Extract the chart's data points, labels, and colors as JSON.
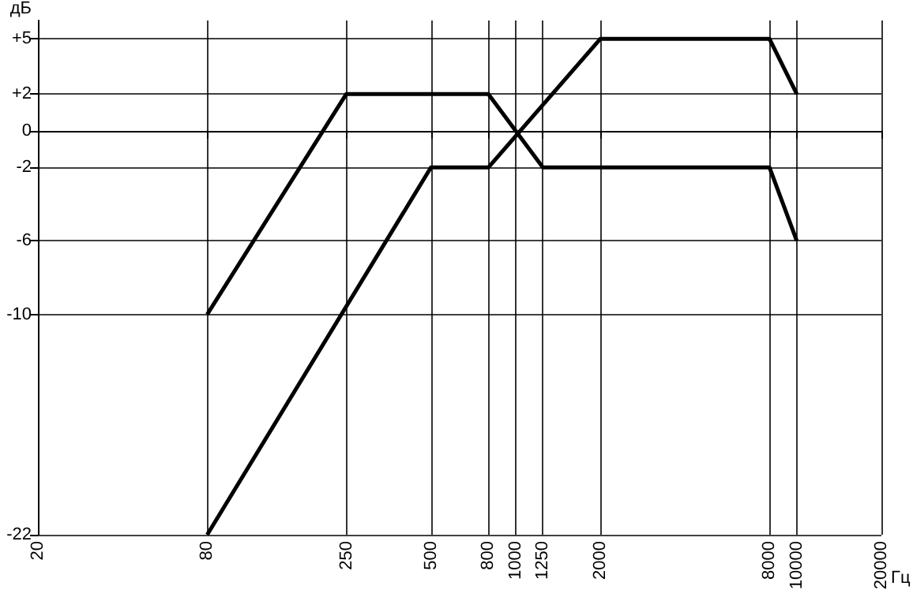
{
  "chart_data": {
    "type": "line",
    "xlabel": "Гц",
    "ylabel": "дБ",
    "log": "x",
    "xlim": [
      20,
      20000
    ],
    "xticks": [
      20,
      80,
      250,
      500,
      800,
      1000,
      1250,
      2000,
      8000,
      10000,
      20000
    ],
    "ylim": [
      -22,
      6
    ],
    "yticks": [
      {
        "value": 5,
        "label": "+5"
      },
      {
        "value": 2,
        "label": "+2"
      },
      0,
      -2,
      -6,
      -10,
      -22
    ],
    "grid": true,
    "marker": "none",
    "line_style": "solid",
    "series": [
      {
        "color": "#000000",
        "x": [
          80,
          250,
          800,
          1250,
          8000,
          10000
        ],
        "values": [
          -10,
          2,
          2,
          -2,
          -2,
          -6
        ]
      },
      {
        "color": "#000000",
        "x": [
          80,
          500,
          800,
          2000,
          8000,
          10000
        ],
        "values": [
          -22,
          -2,
          -2,
          5,
          5,
          2
        ]
      }
    ]
  }
}
